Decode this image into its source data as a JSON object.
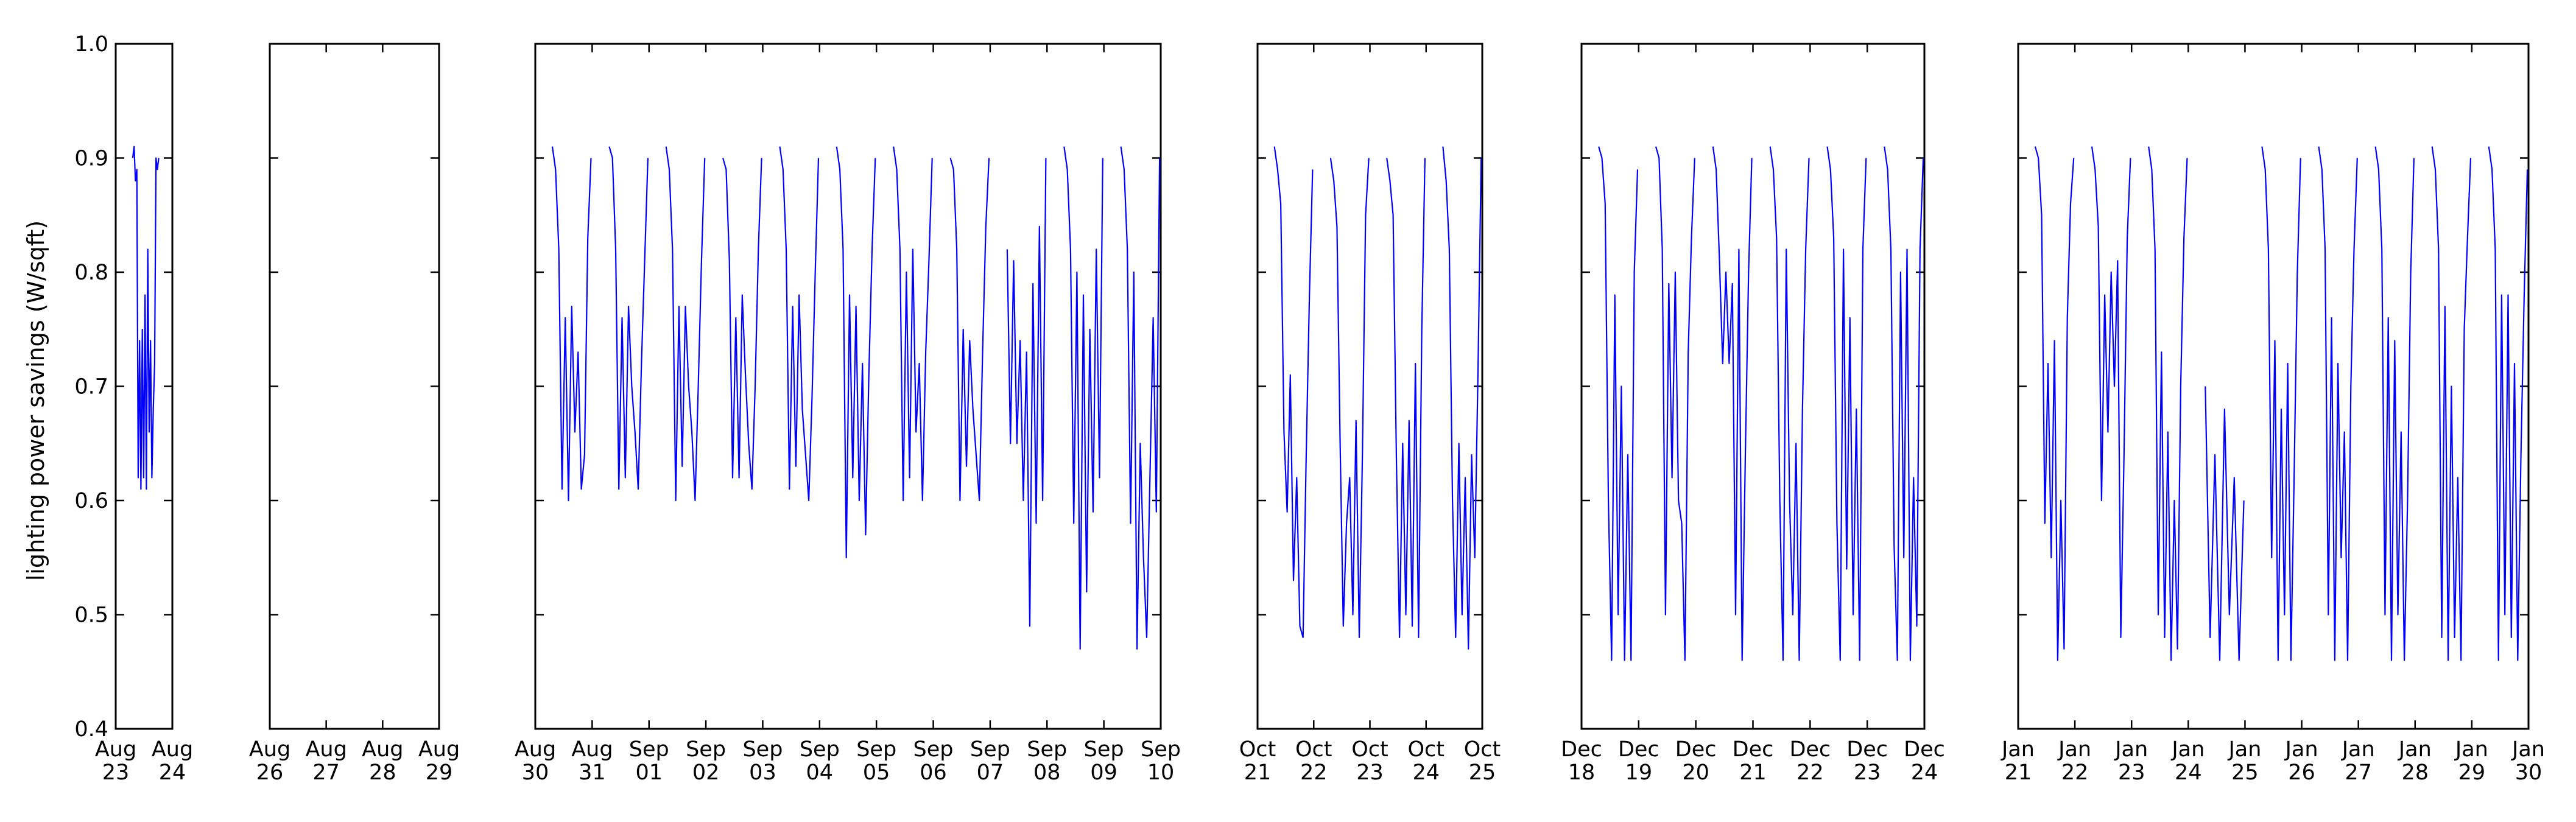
{
  "chart_data": {
    "type": "line",
    "title": "",
    "ylabel": "lighting power savings (W/sqft)",
    "ylim": [
      0.4,
      1.0
    ],
    "yticks": [
      "0.4",
      "0.5",
      "0.6",
      "0.7",
      "0.8",
      "0.9",
      "1.0"
    ],
    "grid": false,
    "legend": "none",
    "line_color": "#0000ff",
    "panels": [
      {
        "xlim": [
          "2015-08-23",
          "2015-08-24"
        ],
        "xticks": [
          [
            "Aug",
            "23"
          ],
          [
            "Aug",
            "24"
          ]
        ],
        "days": [
          {
            "day": "2015-08-23",
            "end": 0.76,
            "values": [
              0.9,
              0.91,
              0.88,
              0.89,
              0.62,
              0.74,
              0.61,
              0.75,
              0.62,
              0.78,
              0.61,
              0.82,
              0.66,
              0.74,
              0.62,
              0.68,
              0.72,
              0.9,
              0.89,
              0.9
            ]
          }
        ]
      },
      {
        "xlim": [
          "2015-08-26",
          "2015-08-29"
        ],
        "xticks": [
          [
            "Aug",
            "26"
          ],
          [
            "Aug",
            "27"
          ],
          [
            "Aug",
            "28"
          ],
          [
            "Aug",
            "29"
          ]
        ],
        "days": []
      },
      {
        "xlim": [
          "2015-08-30",
          "2015-09-10"
        ],
        "xticks": [
          [
            "Aug",
            "30"
          ],
          [
            "Aug",
            "31"
          ],
          [
            "Sep",
            "01"
          ],
          [
            "Sep",
            "02"
          ],
          [
            "Sep",
            "03"
          ],
          [
            "Sep",
            "04"
          ],
          [
            "Sep",
            "05"
          ],
          [
            "Sep",
            "06"
          ],
          [
            "Sep",
            "07"
          ],
          [
            "Sep",
            "08"
          ],
          [
            "Sep",
            "09"
          ],
          [
            "Sep",
            "10"
          ]
        ],
        "days": [
          {
            "day": "2015-08-30",
            "values": [
              0.91,
              0.89,
              0.82,
              0.61,
              0.76,
              0.6,
              0.77,
              0.66,
              0.73,
              0.61,
              0.64,
              0.83,
              0.9
            ]
          },
          {
            "day": "2015-08-31",
            "values": [
              0.91,
              0.9,
              0.82,
              0.61,
              0.76,
              0.62,
              0.77,
              0.7,
              0.66,
              0.61,
              0.72,
              0.81,
              0.9
            ]
          },
          {
            "day": "2015-09-01",
            "values": [
              0.91,
              0.89,
              0.82,
              0.6,
              0.77,
              0.63,
              0.77,
              0.7,
              0.66,
              0.6,
              0.7,
              0.81,
              0.9
            ]
          },
          {
            "day": "2015-09-02",
            "values": [
              0.9,
              0.89,
              0.81,
              0.62,
              0.76,
              0.62,
              0.78,
              0.71,
              0.65,
              0.61,
              0.7,
              0.82,
              0.9
            ]
          },
          {
            "day": "2015-09-03",
            "values": [
              0.91,
              0.89,
              0.82,
              0.61,
              0.77,
              0.63,
              0.78,
              0.68,
              0.64,
              0.6,
              0.69,
              0.8,
              0.9
            ]
          },
          {
            "day": "2015-09-04",
            "values": [
              0.91,
              0.89,
              0.82,
              0.55,
              0.78,
              0.62,
              0.77,
              0.6,
              0.72,
              0.57,
              0.71,
              0.82,
              0.9
            ]
          },
          {
            "day": "2015-09-05",
            "values": [
              0.91,
              0.89,
              0.82,
              0.6,
              0.8,
              0.62,
              0.82,
              0.66,
              0.72,
              0.6,
              0.73,
              0.81,
              0.9
            ]
          },
          {
            "day": "2015-09-06",
            "values": [
              0.9,
              0.89,
              0.82,
              0.6,
              0.75,
              0.63,
              0.74,
              0.68,
              0.64,
              0.6,
              0.73,
              0.84,
              0.9
            ]
          },
          {
            "day": "2015-09-07",
            "values": [
              0.82,
              0.65,
              0.81,
              0.65,
              0.74,
              0.6,
              0.73,
              0.49,
              0.79,
              0.58,
              0.84,
              0.6,
              0.9
            ]
          },
          {
            "day": "2015-09-08",
            "values": [
              0.91,
              0.89,
              0.82,
              0.58,
              0.8,
              0.47,
              0.78,
              0.52,
              0.75,
              0.59,
              0.82,
              0.62,
              0.9
            ]
          },
          {
            "day": "2015-09-09",
            "values": [
              0.91,
              0.89,
              0.82,
              0.58,
              0.8,
              0.47,
              0.65,
              0.55,
              0.48,
              0.62,
              0.76,
              0.59,
              0.9
            ]
          }
        ]
      },
      {
        "xlim": [
          "2015-10-21",
          "2015-10-25"
        ],
        "xticks": [
          [
            "Oct",
            "21"
          ],
          [
            "Oct",
            "22"
          ],
          [
            "Oct",
            "23"
          ],
          [
            "Oct",
            "24"
          ],
          [
            "Oct",
            "25"
          ]
        ],
        "days": [
          {
            "day": "2015-10-21",
            "values": [
              0.91,
              0.89,
              0.86,
              0.66,
              0.59,
              0.71,
              0.53,
              0.62,
              0.49,
              0.48,
              0.64,
              0.78,
              0.89
            ]
          },
          {
            "day": "2015-10-22",
            "values": [
              0.9,
              0.88,
              0.84,
              0.65,
              0.49,
              0.58,
              0.62,
              0.5,
              0.67,
              0.48,
              0.64,
              0.85,
              0.9
            ]
          },
          {
            "day": "2015-10-23",
            "values": [
              0.9,
              0.88,
              0.85,
              0.64,
              0.48,
              0.65,
              0.5,
              0.67,
              0.49,
              0.72,
              0.48,
              0.75,
              0.9
            ]
          },
          {
            "day": "2015-10-24",
            "values": [
              0.91,
              0.88,
              0.82,
              0.6,
              0.48,
              0.65,
              0.5,
              0.62,
              0.47,
              0.64,
              0.55,
              0.71,
              0.9
            ]
          }
        ]
      },
      {
        "xlim": [
          "2015-12-18",
          "2015-12-24"
        ],
        "xticks": [
          [
            "Dec",
            "18"
          ],
          [
            "Dec",
            "19"
          ],
          [
            "Dec",
            "20"
          ],
          [
            "Dec",
            "21"
          ],
          [
            "Dec",
            "22"
          ],
          [
            "Dec",
            "23"
          ],
          [
            "Dec",
            "24"
          ]
        ],
        "days": [
          {
            "day": "2015-12-18",
            "values": [
              0.91,
              0.9,
              0.86,
              0.6,
              0.46,
              0.78,
              0.5,
              0.7,
              0.46,
              0.64,
              0.46,
              0.8,
              0.89
            ]
          },
          {
            "day": "2015-12-19",
            "values": [
              0.91,
              0.9,
              0.82,
              0.5,
              0.79,
              0.62,
              0.8,
              0.6,
              0.58,
              0.46,
              0.73,
              0.83,
              0.9
            ]
          },
          {
            "day": "2015-12-20",
            "values": [
              0.91,
              0.89,
              0.81,
              0.72,
              0.8,
              0.72,
              0.79,
              0.5,
              0.82,
              0.46,
              0.64,
              0.8,
              0.9
            ]
          },
          {
            "day": "2015-12-21",
            "values": [
              0.91,
              0.89,
              0.83,
              0.6,
              0.46,
              0.82,
              0.6,
              0.5,
              0.65,
              0.46,
              0.68,
              0.82,
              0.9
            ]
          },
          {
            "day": "2015-12-22",
            "values": [
              0.91,
              0.89,
              0.83,
              0.58,
              0.46,
              0.82,
              0.54,
              0.76,
              0.5,
              0.68,
              0.46,
              0.82,
              0.9
            ]
          },
          {
            "day": "2015-12-23",
            "values": [
              0.91,
              0.89,
              0.82,
              0.56,
              0.46,
              0.8,
              0.55,
              0.82,
              0.46,
              0.62,
              0.49,
              0.82,
              0.9
            ]
          }
        ]
      },
      {
        "xlim": [
          "2016-01-21",
          "2016-01-30"
        ],
        "xticks": [
          [
            "Jan",
            "21"
          ],
          [
            "Jan",
            "22"
          ],
          [
            "Jan",
            "23"
          ],
          [
            "Jan",
            "24"
          ],
          [
            "Jan",
            "25"
          ],
          [
            "Jan",
            "26"
          ],
          [
            "Jan",
            "27"
          ],
          [
            "Jan",
            "28"
          ],
          [
            "Jan",
            "29"
          ],
          [
            "Jan",
            "30"
          ]
        ],
        "days": [
          {
            "day": "2016-01-21",
            "values": [
              0.91,
              0.9,
              0.85,
              0.58,
              0.72,
              0.55,
              0.74,
              0.46,
              0.6,
              0.47,
              0.76,
              0.86,
              0.9
            ]
          },
          {
            "day": "2016-01-22",
            "values": [
              0.91,
              0.89,
              0.84,
              0.6,
              0.78,
              0.66,
              0.8,
              0.7,
              0.81,
              0.48,
              0.64,
              0.83,
              0.9
            ]
          },
          {
            "day": "2016-01-23",
            "values": [
              0.91,
              0.89,
              0.82,
              0.5,
              0.73,
              0.48,
              0.66,
              0.46,
              0.6,
              0.47,
              0.7,
              0.83,
              0.9
            ]
          },
          {
            "day": "2016-01-24",
            "values": [
              0.7,
              0.48,
              0.64,
              0.46,
              0.68,
              0.5,
              0.62,
              0.46,
              0.6
            ]
          },
          {
            "day": "2016-01-25",
            "values": [
              0.91,
              0.89,
              0.82,
              0.55,
              0.74,
              0.46,
              0.68,
              0.5,
              0.72,
              0.46,
              0.62,
              0.8,
              0.9
            ]
          },
          {
            "day": "2016-01-26",
            "values": [
              0.91,
              0.89,
              0.82,
              0.5,
              0.76,
              0.46,
              0.72,
              0.55,
              0.66,
              0.46,
              0.7,
              0.82,
              0.9
            ]
          },
          {
            "day": "2016-01-27",
            "values": [
              0.91,
              0.89,
              0.82,
              0.5,
              0.76,
              0.46,
              0.74,
              0.5,
              0.66,
              0.46,
              0.6,
              0.8,
              0.9
            ]
          },
          {
            "day": "2016-01-28",
            "values": [
              0.91,
              0.89,
              0.82,
              0.48,
              0.77,
              0.46,
              0.7,
              0.48,
              0.62,
              0.46,
              0.75,
              0.83,
              0.9
            ]
          },
          {
            "day": "2016-01-29",
            "values": [
              0.91,
              0.89,
              0.82,
              0.46,
              0.78,
              0.5,
              0.78,
              0.48,
              0.72,
              0.46,
              0.64,
              0.78,
              0.89
            ]
          }
        ]
      }
    ]
  }
}
